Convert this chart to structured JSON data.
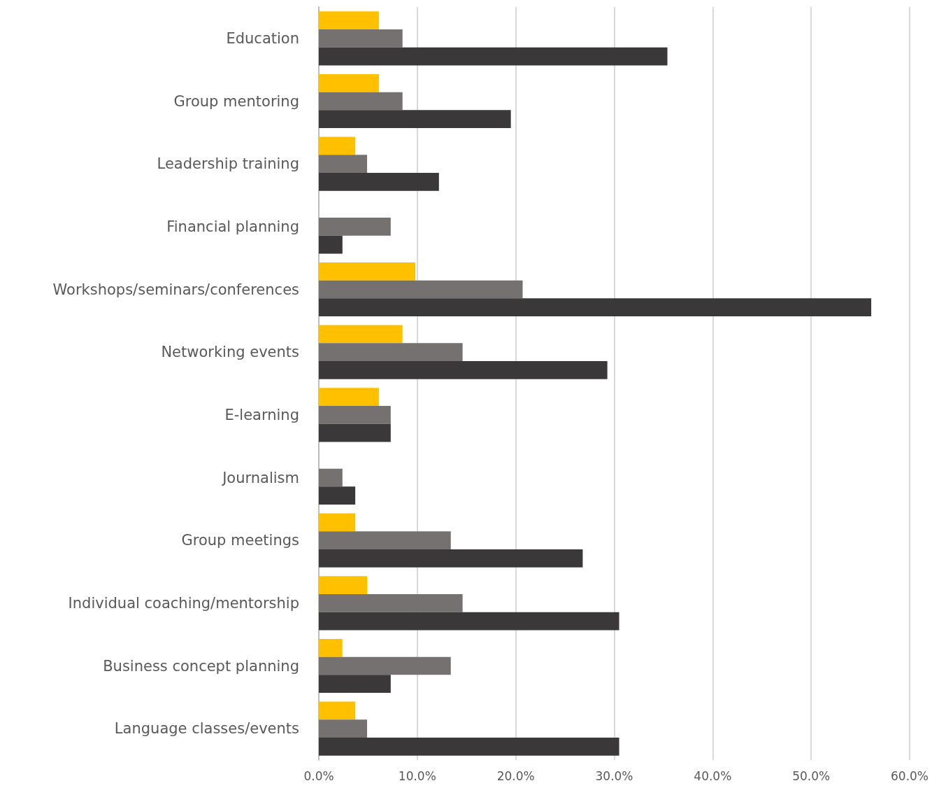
{
  "chart_data": {
    "type": "bar",
    "orientation": "horizontal",
    "categories": [
      "Education",
      "Group mentoring",
      "Leadership training",
      "Financial planning",
      "Workshops/seminars/conferences",
      "Networking events",
      "E-learning",
      "Journalism",
      "Group meetings",
      "Individual coaching/mentorship",
      "Business concept planning",
      "Language classes/events"
    ],
    "series": [
      {
        "color": "#ffc000",
        "values": [
          6.1,
          6.1,
          3.7,
          0,
          9.8,
          8.5,
          6.1,
          0,
          3.7,
          4.9,
          2.4,
          3.7
        ]
      },
      {
        "color": "#767171",
        "values": [
          8.5,
          8.5,
          4.9,
          7.3,
          20.7,
          14.6,
          7.3,
          2.4,
          13.4,
          14.6,
          13.4,
          4.9
        ]
      },
      {
        "color": "#3a3838",
        "values": [
          35.4,
          19.5,
          12.2,
          2.4,
          56.1,
          29.3,
          7.3,
          3.7,
          26.8,
          30.5,
          7.3,
          30.5
        ]
      }
    ],
    "xlim": [
      0,
      60
    ],
    "xticks": [
      {
        "value": 0,
        "label": "0.0%"
      },
      {
        "value": 10,
        "label": "10.0%"
      },
      {
        "value": 20,
        "label": "20.0%"
      },
      {
        "value": 30,
        "label": "30.0%"
      },
      {
        "value": 40,
        "label": "40.0%"
      },
      {
        "value": 50,
        "label": "50.0%"
      },
      {
        "value": 60,
        "label": "60.0%"
      }
    ],
    "grid": "x"
  }
}
